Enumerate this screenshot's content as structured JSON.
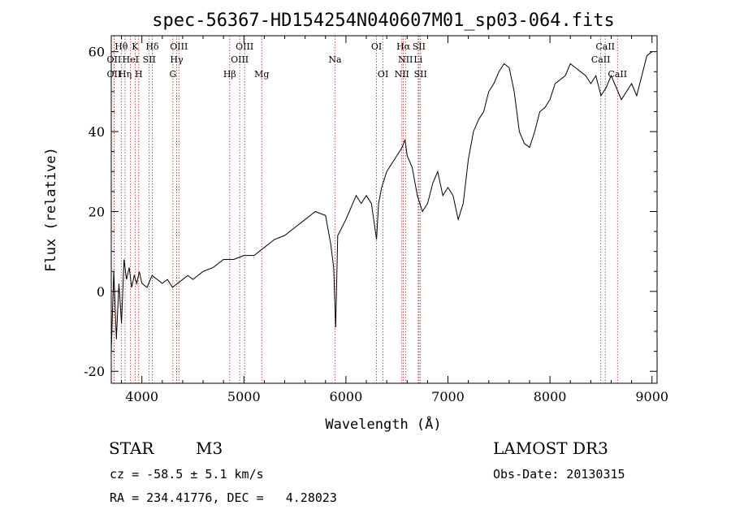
{
  "chart_data": {
    "type": "line",
    "title": "spec-56367-HD154254N040607M01_sp03-064.fits",
    "xlabel": "Wavelength (Å)",
    "ylabel": "Flux (relative)",
    "xlim": [
      3700,
      9050
    ],
    "ylim": [
      -23,
      64
    ],
    "xticks": [
      4000,
      5000,
      6000,
      7000,
      8000,
      9000
    ],
    "yticks": [
      -20,
      0,
      20,
      40,
      60
    ],
    "line_color": "#000000",
    "marker_color": "#b22222",
    "series": [
      {
        "x": [
          3700,
          3725,
          3750,
          3775,
          3800,
          3825,
          3850,
          3875,
          3900,
          3925,
          3950,
          3975,
          4000,
          4050,
          4100,
          4150,
          4200,
          4250,
          4300,
          4350,
          4400,
          4450,
          4500,
          4600,
          4700,
          4800,
          4900,
          5000,
          5100,
          5200,
          5300,
          5400,
          5500,
          5600,
          5700,
          5800,
          5850,
          5880,
          5900,
          5920,
          5940,
          5960,
          5980,
          6000,
          6050,
          6100,
          6150,
          6200,
          6250,
          6300,
          6320,
          6350,
          6400,
          6450,
          6500,
          6550,
          6580,
          6600,
          6650,
          6700,
          6750,
          6800,
          6850,
          6900,
          6950,
          7000,
          7050,
          7100,
          7150,
          7200,
          7250,
          7300,
          7350,
          7400,
          7450,
          7500,
          7550,
          7600,
          7650,
          7700,
          7750,
          7800,
          7850,
          7900,
          7950,
          8000,
          8050,
          8100,
          8150,
          8200,
          8250,
          8300,
          8350,
          8400,
          8450,
          8500,
          8550,
          8600,
          8650,
          8700,
          8750,
          8800,
          8850,
          8900,
          8950,
          9000
        ],
        "y": [
          -15,
          5,
          -12,
          2,
          -8,
          8,
          3,
          6,
          1,
          4,
          2,
          5,
          2,
          1,
          4,
          3,
          2,
          3,
          1,
          2,
          3,
          4,
          3,
          5,
          6,
          8,
          8,
          9,
          9,
          11,
          13,
          14,
          16,
          18,
          20,
          19,
          12,
          6,
          -9,
          14,
          15,
          16,
          17,
          18,
          21,
          24,
          22,
          24,
          22,
          13,
          22,
          26,
          30,
          32,
          34,
          36,
          38,
          34,
          31,
          24,
          20,
          22,
          27,
          30,
          24,
          26,
          24,
          18,
          22,
          33,
          40,
          43,
          45,
          50,
          52,
          55,
          57,
          56,
          50,
          40,
          37,
          36,
          40,
          45,
          46,
          48,
          52,
          53,
          54,
          57,
          56,
          55,
          54,
          52,
          54,
          49,
          51,
          54,
          51,
          48,
          50,
          52,
          49,
          54,
          59,
          60
        ]
      }
    ],
    "lines": [
      {
        "label": "Hθ",
        "x": 3798,
        "row": 1
      },
      {
        "label": "OII",
        "x": 3727,
        "row": 2
      },
      {
        "label": "OII",
        "x": 3727,
        "row": 3
      },
      {
        "label": "K",
        "x": 3934,
        "row": 1
      },
      {
        "label": "HeI",
        "x": 3889,
        "row": 2
      },
      {
        "label": "Hη",
        "x": 3835,
        "row": 3
      },
      {
        "label": "Hδ",
        "x": 4102,
        "row": 1
      },
      {
        "label": "SII",
        "x": 4072,
        "row": 2
      },
      {
        "label": "H",
        "x": 3969,
        "row": 3
      },
      {
        "label": "OIII",
        "x": 4363,
        "row": 1
      },
      {
        "label": "Hγ",
        "x": 4341,
        "row": 2
      },
      {
        "label": "G",
        "x": 4304,
        "row": 3
      },
      {
        "label": "OIII",
        "x": 5007,
        "row": 1
      },
      {
        "label": "OIII",
        "x": 4959,
        "row": 2
      },
      {
        "label": "Hβ",
        "x": 4861,
        "row": 3
      },
      {
        "label": "Mg",
        "x": 5175,
        "row": 3
      },
      {
        "label": "Na",
        "x": 5893,
        "row": 2
      },
      {
        "label": "OI",
        "x": 6300,
        "row": 1
      },
      {
        "label": "OI",
        "x": 6364,
        "row": 3
      },
      {
        "label": "Hα",
        "x": 6563,
        "row": 1
      },
      {
        "label": "SII",
        "x": 6716,
        "row": 1
      },
      {
        "label": "NII",
        "x": 6584,
        "row": 2
      },
      {
        "label": "Li",
        "x": 6708,
        "row": 2
      },
      {
        "label": "NII",
        "x": 6548,
        "row": 3
      },
      {
        "label": "SII",
        "x": 6731,
        "row": 3
      },
      {
        "label": "CaII",
        "x": 8542,
        "row": 1
      },
      {
        "label": "CaII",
        "x": 8498,
        "row": 2
      },
      {
        "label": "CaII",
        "x": 8662,
        "row": 3
      }
    ]
  },
  "info": {
    "object_class": "STAR",
    "subclass": "M3",
    "survey": "LAMOST DR3",
    "cz": "cz = -58.5 ± 5.1 km/s",
    "obs_date": "Obs-Date: 20130315",
    "coords": "RA = 234.41776, DEC =   4.28023"
  }
}
